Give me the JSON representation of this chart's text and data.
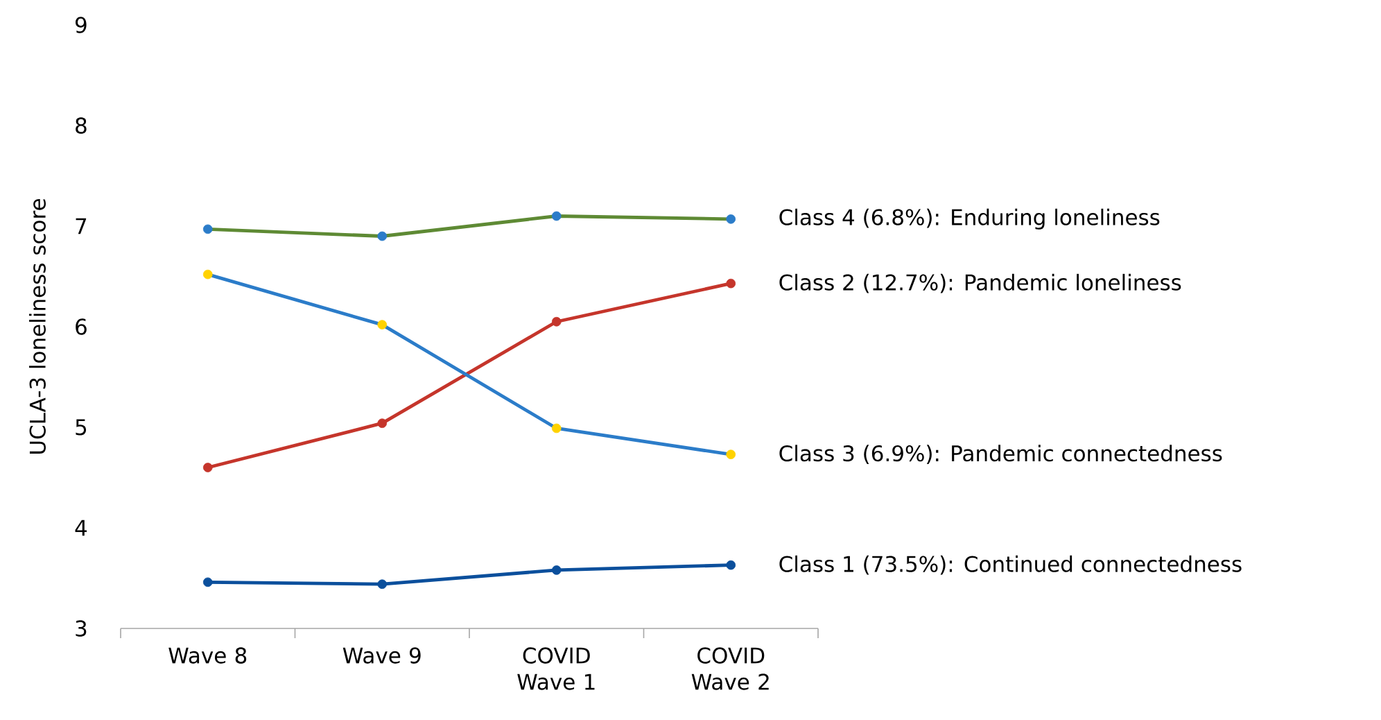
{
  "chart_data": {
    "type": "line",
    "ylabel": "UCLA-3 loneliness score",
    "categories": [
      "Wave 8",
      "Wave 9",
      "COVID Wave 1",
      "COVID Wave 2"
    ],
    "ylim": [
      3,
      9
    ],
    "yticks": [
      3,
      4,
      5,
      6,
      7,
      8,
      9
    ],
    "grid": false,
    "marker": "circle",
    "series": [
      {
        "name": "Class 1 (73.5%): Continued connectedness",
        "color": "#0b4f9c",
        "colors": [
          "#0b4f9c",
          "#0b4f9c",
          "#0b4f9c",
          "#0b4f9c"
        ],
        "values": [
          3.46,
          3.44,
          3.58,
          3.63
        ]
      },
      {
        "name": "Class 2 (12.7%): Pandemic loneliness",
        "color": "#c5352b",
        "colors": [
          "#c5352b",
          "#c5352b",
          "#c5352b",
          "#c5352b"
        ],
        "values": [
          4.6,
          5.04,
          6.05,
          6.43
        ]
      },
      {
        "name": "Class 3 (6.9%): Pandemic connectedness",
        "color": "#2b7cc9",
        "colors": [
          "#ffd200",
          "#ffd200",
          "#ffd200",
          "#ffd200"
        ],
        "values": [
          6.52,
          6.02,
          4.99,
          4.73
        ]
      },
      {
        "name": "Class 4 (6.8%): Enduring loneliness",
        "color": "#5e8a34",
        "colors": [
          "#2b7cc9",
          "#2b7cc9",
          "#2b7cc9",
          "#2b7cc9"
        ],
        "values": [
          6.97,
          6.9,
          7.1,
          7.07
        ]
      }
    ]
  }
}
